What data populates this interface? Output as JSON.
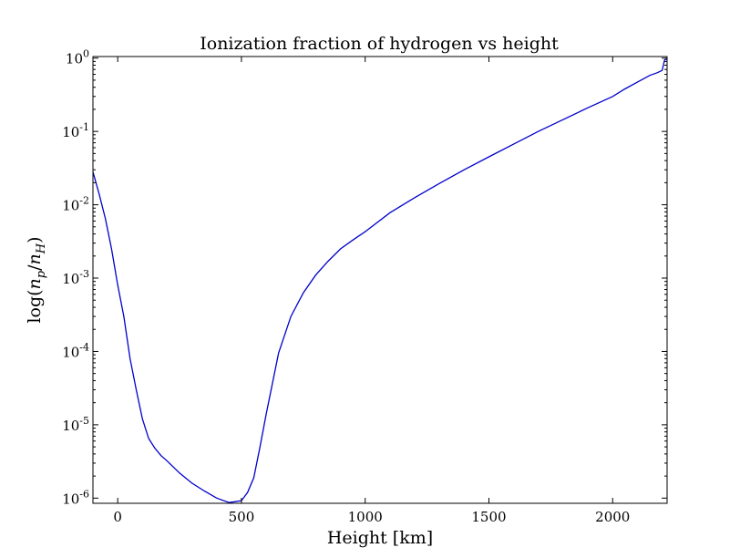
{
  "chart_data": {
    "type": "line",
    "title": "Ionization fraction of hydrogen vs height",
    "xlabel": "Height [km]",
    "ylabel": "log(n_p/n_H)",
    "ylabel_parts": {
      "prefix": "log(",
      "n1": "n",
      "sub1": "p",
      "slash": "/",
      "n2": "n",
      "sub2": "H",
      "suffix": ")"
    },
    "xlim": [
      -100,
      2220
    ],
    "ylim": [
      8.5e-07,
      1.05
    ],
    "yscale": "log",
    "grid": false,
    "xticks": [
      {
        "value": 0,
        "label": "0"
      },
      {
        "value": 500,
        "label": "500"
      },
      {
        "value": 1000,
        "label": "1000"
      },
      {
        "value": 1500,
        "label": "1500"
      },
      {
        "value": 2000,
        "label": "2000"
      }
    ],
    "yticks": [
      {
        "value": 1e-06,
        "base": "10",
        "exp": "-6"
      },
      {
        "value": 1e-05,
        "base": "10",
        "exp": "-5"
      },
      {
        "value": 0.0001,
        "base": "10",
        "exp": "-4"
      },
      {
        "value": 0.001,
        "base": "10",
        "exp": "-3"
      },
      {
        "value": 0.01,
        "base": "10",
        "exp": "-2"
      },
      {
        "value": 0.1,
        "base": "10",
        "exp": "-1"
      },
      {
        "value": 1,
        "base": "10",
        "exp": "0"
      }
    ],
    "line_color": "#0000cc",
    "series": [
      {
        "x": [
          -100,
          -75,
          -50,
          -25,
          0,
          25,
          50,
          75,
          100,
          125,
          150,
          175,
          200,
          250,
          300,
          350,
          400,
          450,
          500,
          525,
          550,
          575,
          600,
          650,
          700,
          750,
          800,
          850,
          900,
          950,
          1000,
          1100,
          1200,
          1300,
          1400,
          1500,
          1600,
          1700,
          1800,
          1900,
          2000,
          2050,
          2100,
          2150,
          2180,
          2200,
          2210,
          2220
        ],
        "y": [
          0.028,
          0.014,
          0.0065,
          0.0025,
          0.0008,
          0.0003,
          8e-05,
          3e-05,
          1.2e-05,
          6.5e-06,
          4.8e-06,
          3.8e-06,
          3.2e-06,
          2.2e-06,
          1.6e-06,
          1.25e-06,
          1e-06,
          8.7e-07,
          9.2e-07,
          1.2e-06,
          1.9e-06,
          5e-06,
          1.4e-05,
          9.5e-05,
          0.0003,
          0.00063,
          0.0011,
          0.0017,
          0.0025,
          0.0033,
          0.0043,
          0.0078,
          0.0125,
          0.0195,
          0.03,
          0.045,
          0.067,
          0.1,
          0.145,
          0.21,
          0.3,
          0.38,
          0.47,
          0.58,
          0.63,
          0.68,
          0.95,
          0.97
        ]
      }
    ]
  }
}
